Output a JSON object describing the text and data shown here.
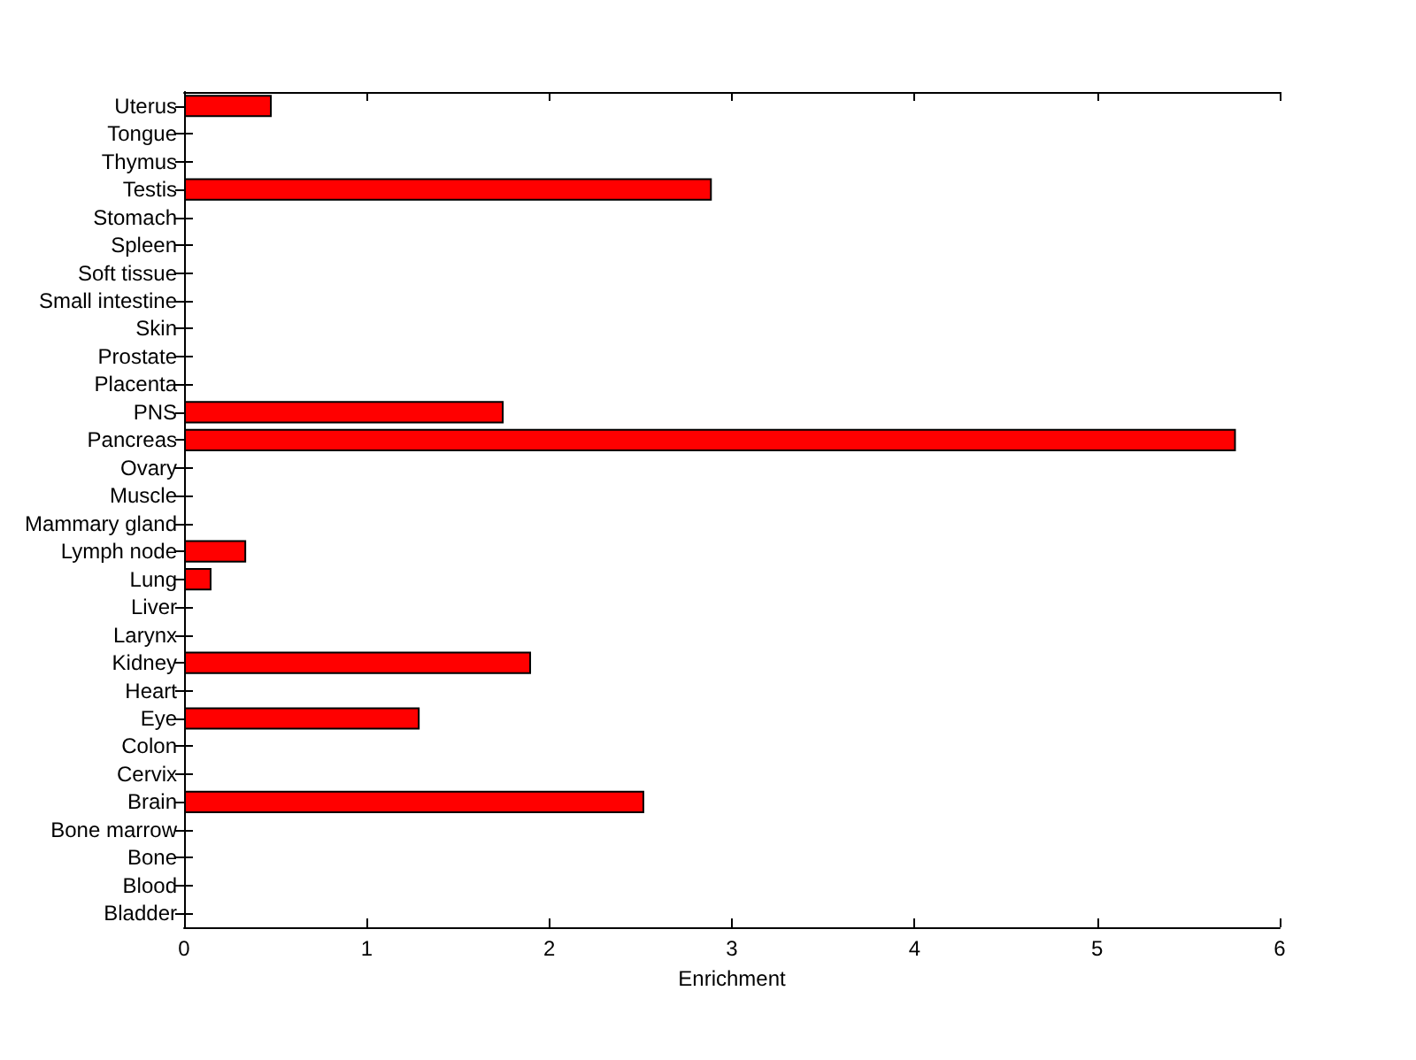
{
  "chart_data": {
    "type": "bar",
    "orientation": "horizontal",
    "categories": [
      "Uterus",
      "Tongue",
      "Thymus",
      "Testis",
      "Stomach",
      "Spleen",
      "Soft tissue",
      "Small intestine",
      "Skin",
      "Prostate",
      "Placenta",
      "PNS",
      "Pancreas",
      "Ovary",
      "Muscle",
      "Mammary gland",
      "Lymph node",
      "Lung",
      "Liver",
      "Larynx",
      "Kidney",
      "Heart",
      "Eye",
      "Colon",
      "Cervix",
      "Brain",
      "Bone marrow",
      "Bone",
      "Blood",
      "Bladder"
    ],
    "values": [
      0.48,
      0,
      0,
      2.89,
      0,
      0,
      0,
      0,
      0,
      0,
      0,
      1.75,
      5.76,
      0,
      0,
      0,
      0.34,
      0.15,
      0,
      0,
      1.9,
      0,
      1.29,
      0,
      0,
      2.52,
      0,
      0,
      0,
      0
    ],
    "color": "#ff0000",
    "xlabel": "Enrichment",
    "xlim": [
      0,
      6
    ],
    "xticks": [
      0,
      1,
      2,
      3,
      4,
      5,
      6
    ]
  }
}
